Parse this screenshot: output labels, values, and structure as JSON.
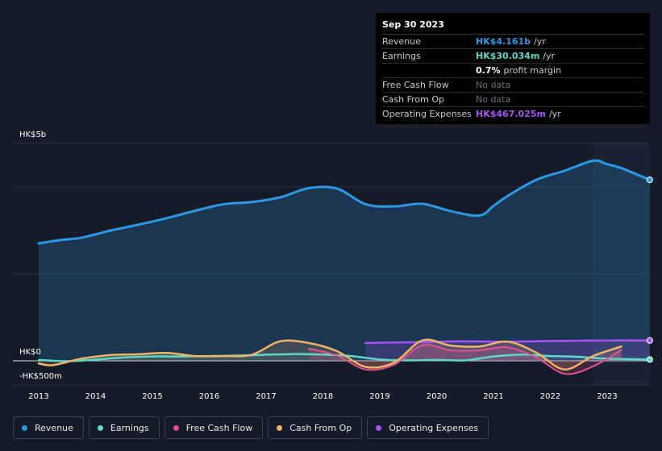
{
  "colors": {
    "revenue": "#2e97e5",
    "earnings": "#5fd9c6",
    "free_cash_flow": "#e0548e",
    "cash_from_op": "#f0b36b",
    "operating_expenses": "#a855f7"
  },
  "tooltip": {
    "date": "Sep 30 2023",
    "rows": [
      {
        "label": "Revenue",
        "value": "HK$4.161b",
        "unit": "/yr"
      },
      {
        "label": "Earnings",
        "value": "HK$30.034m",
        "unit": "/yr"
      },
      {
        "label": "",
        "value": "0.7%",
        "unit": "profit margin"
      },
      {
        "label": "Free Cash Flow",
        "value": "No data"
      },
      {
        "label": "Cash From Op",
        "value": "No data"
      },
      {
        "label": "Operating Expenses",
        "value": "HK$467.025m",
        "unit": "/yr"
      }
    ]
  },
  "legend": [
    {
      "label": "Revenue",
      "color_key": "revenue"
    },
    {
      "label": "Earnings",
      "color_key": "earnings"
    },
    {
      "label": "Free Cash Flow",
      "color_key": "free_cash_flow"
    },
    {
      "label": "Cash From Op",
      "color_key": "cash_from_op"
    },
    {
      "label": "Operating Expenses",
      "color_key": "operating_expenses"
    }
  ],
  "chart_data": {
    "type": "area",
    "y_unit": "HK$ millions",
    "ylim": [
      -500,
      5000
    ],
    "y_tick_labels": [
      {
        "value": 5000,
        "label": "HK$5b"
      },
      {
        "value": 0,
        "label": "HK$0"
      },
      {
        "value": -500,
        "label": "-HK$500m"
      }
    ],
    "x_ticks": [
      "2013",
      "2014",
      "2015",
      "2016",
      "2017",
      "2018",
      "2019",
      "2020",
      "2021",
      "2022",
      "2023"
    ],
    "xlim": [
      2012.5,
      2023.75
    ],
    "grid": true,
    "legend_position": "bottom",
    "series": [
      {
        "name": "Revenue",
        "key": "revenue",
        "points": [
          [
            2013.0,
            2700
          ],
          [
            2013.4,
            2780
          ],
          [
            2013.75,
            2830
          ],
          [
            2014.25,
            2990
          ],
          [
            2014.75,
            3130
          ],
          [
            2015.25,
            3280
          ],
          [
            2015.75,
            3450
          ],
          [
            2016.25,
            3600
          ],
          [
            2016.75,
            3650
          ],
          [
            2017.25,
            3760
          ],
          [
            2017.75,
            3970
          ],
          [
            2018.25,
            3960
          ],
          [
            2018.75,
            3600
          ],
          [
            2019.25,
            3550
          ],
          [
            2019.75,
            3610
          ],
          [
            2020.25,
            3440
          ],
          [
            2020.75,
            3340
          ],
          [
            2021.0,
            3560
          ],
          [
            2021.25,
            3790
          ],
          [
            2021.75,
            4160
          ],
          [
            2022.25,
            4370
          ],
          [
            2022.75,
            4600
          ],
          [
            2023.0,
            4520
          ],
          [
            2023.25,
            4430
          ],
          [
            2023.75,
            4161
          ]
        ]
      },
      {
        "name": "Earnings",
        "key": "earnings",
        "points": [
          [
            2013.0,
            20
          ],
          [
            2013.5,
            -10
          ],
          [
            2014.0,
            30
          ],
          [
            2014.5,
            80
          ],
          [
            2015.0,
            100
          ],
          [
            2015.5,
            100
          ],
          [
            2016.0,
            110
          ],
          [
            2016.5,
            120
          ],
          [
            2017.0,
            140
          ],
          [
            2017.5,
            155
          ],
          [
            2018.0,
            145
          ],
          [
            2018.5,
            110
          ],
          [
            2019.0,
            30
          ],
          [
            2019.5,
            10
          ],
          [
            2020.0,
            20
          ],
          [
            2020.5,
            10
          ],
          [
            2021.0,
            100
          ],
          [
            2021.5,
            140
          ],
          [
            2022.0,
            110
          ],
          [
            2022.5,
            90
          ],
          [
            2023.0,
            50
          ],
          [
            2023.75,
            30
          ]
        ]
      },
      {
        "name": "Free Cash Flow",
        "key": "free_cash_flow",
        "points": [
          [
            2017.75,
            280
          ],
          [
            2018.25,
            120
          ],
          [
            2018.75,
            -200
          ],
          [
            2019.25,
            -90
          ],
          [
            2019.75,
            360
          ],
          [
            2020.25,
            240
          ],
          [
            2020.75,
            240
          ],
          [
            2021.25,
            310
          ],
          [
            2021.75,
            80
          ],
          [
            2022.25,
            -300
          ],
          [
            2022.75,
            -130
          ],
          [
            2023.25,
            250
          ]
        ]
      },
      {
        "name": "Cash From Op",
        "key": "cash_from_op",
        "points": [
          [
            2013.0,
            -60
          ],
          [
            2013.25,
            -100
          ],
          [
            2013.75,
            50
          ],
          [
            2014.25,
            130
          ],
          [
            2014.75,
            150
          ],
          [
            2015.25,
            180
          ],
          [
            2015.75,
            110
          ],
          [
            2016.25,
            110
          ],
          [
            2016.75,
            140
          ],
          [
            2017.25,
            450
          ],
          [
            2017.75,
            410
          ],
          [
            2018.25,
            220
          ],
          [
            2018.75,
            -140
          ],
          [
            2019.25,
            -40
          ],
          [
            2019.75,
            470
          ],
          [
            2020.25,
            350
          ],
          [
            2020.75,
            330
          ],
          [
            2021.25,
            440
          ],
          [
            2021.75,
            190
          ],
          [
            2022.25,
            -200
          ],
          [
            2022.75,
            110
          ],
          [
            2023.25,
            330
          ]
        ]
      },
      {
        "name": "Operating Expenses",
        "key": "operating_expenses",
        "points": [
          [
            2018.75,
            410
          ],
          [
            2019.25,
            420
          ],
          [
            2019.75,
            430
          ],
          [
            2020.25,
            445
          ],
          [
            2020.75,
            445
          ],
          [
            2021.25,
            440
          ],
          [
            2021.75,
            450
          ],
          [
            2022.25,
            460
          ],
          [
            2022.75,
            465
          ],
          [
            2023.25,
            467
          ],
          [
            2023.75,
            467
          ]
        ]
      }
    ]
  }
}
